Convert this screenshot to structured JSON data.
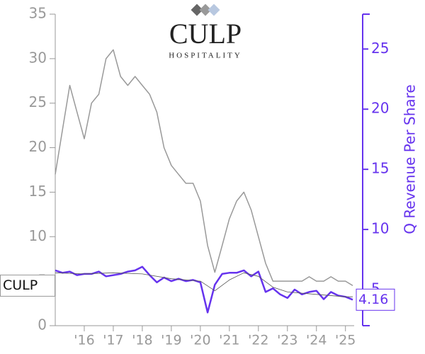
{
  "logo": {
    "name": "CULP",
    "tagline": "HOSPITALITY"
  },
  "chart_data": {
    "type": "line",
    "y2label": "Q Revenue Per Share",
    "x": [
      2015.0,
      2015.25,
      2015.5,
      2015.75,
      2016.0,
      2016.25,
      2016.5,
      2016.75,
      2017.0,
      2017.25,
      2017.5,
      2017.75,
      2018.0,
      2018.25,
      2018.5,
      2018.75,
      2019.0,
      2019.25,
      2019.5,
      2019.75,
      2020.0,
      2020.25,
      2020.5,
      2020.75,
      2021.0,
      2021.25,
      2021.5,
      2021.75,
      2022.0,
      2022.25,
      2022.5,
      2022.75,
      2023.0,
      2023.25,
      2023.5,
      2023.75,
      2024.0,
      2024.25,
      2024.5,
      2024.75,
      2025.0,
      2025.25
    ],
    "series": [
      {
        "name": "CULP",
        "color": "#999999",
        "values": [
          17,
          22,
          27,
          24,
          21,
          25,
          26,
          30,
          31,
          28,
          27,
          28,
          27,
          26,
          24,
          20,
          18,
          17,
          16,
          16,
          14,
          9,
          6,
          9,
          12,
          14,
          15,
          13,
          10,
          7,
          5,
          5,
          5,
          5,
          5,
          5.5,
          5,
          5,
          5.5,
          5,
          5,
          4.5
        ]
      },
      {
        "color": "#6633ee",
        "axis": "y2",
        "values": [
          6.6,
          6.4,
          6.5,
          6.2,
          6.3,
          6.3,
          6.5,
          6.1,
          6.2,
          6.3,
          6.5,
          6.6,
          6.9,
          6.2,
          5.6,
          6.0,
          5.7,
          5.9,
          5.7,
          5.8,
          5.6,
          3.1,
          5.4,
          6.3,
          6.4,
          6.4,
          6.6,
          6.1,
          6.5,
          4.8,
          5.1,
          4.6,
          4.3,
          5.0,
          4.6,
          4.8,
          4.9,
          4.2,
          4.8,
          4.5,
          4.4,
          4.16
        ]
      },
      {
        "color": "#555555",
        "axis": "y2",
        "x": [
          2015.0,
          2016.0,
          2017.0,
          2018.0,
          2019.0,
          2020.0,
          2020.5,
          2021.0,
          2021.5,
          2022.0,
          2022.5,
          2023.0,
          2024.0,
          2025.0,
          2025.25
        ],
        "values": [
          6.4,
          6.3,
          6.4,
          6.3,
          5.9,
          5.7,
          4.9,
          5.8,
          6.4,
          6.1,
          5.2,
          4.8,
          4.6,
          4.4,
          4.4
        ]
      }
    ],
    "xlim": [
      2015.0,
      2025.3
    ],
    "xticks": [
      {
        "value": 2016,
        "label": "'16"
      },
      {
        "value": 2017,
        "label": "'17"
      },
      {
        "value": 2018,
        "label": "'18"
      },
      {
        "value": 2019,
        "label": "'19"
      },
      {
        "value": 2020,
        "label": "'20"
      },
      {
        "value": 2021,
        "label": "'21"
      },
      {
        "value": 2022,
        "label": "'22"
      },
      {
        "value": 2023,
        "label": "'23"
      },
      {
        "value": 2024,
        "label": "'24"
      },
      {
        "value": 2025,
        "label": "'25"
      }
    ],
    "ylim": [
      0,
      35
    ],
    "yticks": [
      0,
      5,
      10,
      15,
      20,
      25,
      30,
      35
    ],
    "y2lim": [
      2,
      27.9
    ],
    "y2ticks": [
      5,
      10,
      15,
      20,
      25
    ]
  }
}
